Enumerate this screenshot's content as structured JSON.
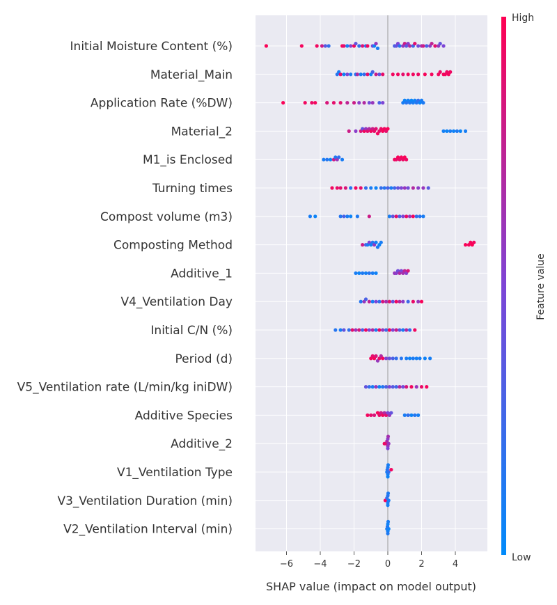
{
  "chart_data": {
    "type": "scatter",
    "variant": "shap-beeswarm-summary",
    "xlabel": "SHAP value (impact on model output)",
    "xlim": [
      -8,
      5.3
    ],
    "xticks": [
      {
        "value": -6,
        "label": "−6"
      },
      {
        "value": -4,
        "label": "−4"
      },
      {
        "value": -2,
        "label": "−2"
      },
      {
        "value": 0,
        "label": "0"
      },
      {
        "value": 2,
        "label": "2"
      },
      {
        "value": 4,
        "label": "4"
      }
    ],
    "grid": true,
    "colorbar": {
      "title": "Feature value",
      "high_label": "High",
      "low_label": "Low",
      "high_color": "#ff0052",
      "low_color": "#008bfb"
    },
    "features": [
      {
        "name": "Initial Moisture Content (%)",
        "shap": [
          -7.2,
          -5.1,
          -4.2,
          -3.9,
          -3.7,
          -3.5,
          -2.7,
          -2.6,
          -2.4,
          -2.2,
          -2.0,
          -1.9,
          -1.7,
          -1.5,
          -1.3,
          -1.2,
          -0.9,
          -0.8,
          -0.7,
          -0.6,
          0.4,
          0.5,
          0.6,
          0.7,
          0.9,
          1.0,
          1.1,
          1.2,
          1.3,
          1.5,
          1.6,
          1.8,
          2.0,
          2.1,
          2.3,
          2.5,
          2.6,
          2.8,
          3.0,
          3.1,
          3.3
        ],
        "value": [
          0.98,
          0.96,
          0.95,
          0.8,
          0.35,
          0.2,
          0.96,
          0.9,
          0.1,
          0.55,
          0.95,
          0.4,
          0.2,
          0.85,
          0.15,
          0.96,
          0.5,
          0.05,
          0.6,
          0.1,
          0.3,
          0.4,
          0.5,
          0.15,
          0.6,
          0.8,
          0.35,
          0.55,
          0.7,
          0.25,
          0.9,
          0.45,
          0.65,
          0.8,
          0.3,
          0.55,
          0.75,
          0.9,
          0.6,
          0.4,
          0.5
        ]
      },
      {
        "name": "Material_Main",
        "shap": [
          -3.0,
          -2.9,
          -2.8,
          -2.6,
          -2.4,
          -2.2,
          -1.9,
          -1.8,
          -1.6,
          -1.4,
          -1.2,
          -1.0,
          -0.9,
          -0.7,
          -0.5,
          -0.3,
          0.3,
          0.6,
          0.9,
          1.2,
          1.5,
          1.8,
          2.2,
          2.6,
          3.0,
          3.1,
          3.3,
          3.4,
          3.5,
          3.6,
          3.7
        ],
        "value": [
          0.15,
          0.1,
          0.9,
          0.05,
          0.5,
          0.1,
          0.15,
          0.7,
          0.1,
          0.2,
          0.9,
          0.05,
          0.3,
          0.8,
          0.4,
          0.92,
          0.95,
          0.95,
          0.9,
          0.96,
          0.95,
          0.93,
          0.97,
          0.96,
          0.95,
          0.92,
          0.97,
          0.95,
          0.93,
          0.96,
          0.94
        ]
      },
      {
        "name": "Application Rate (%DW)",
        "shap": [
          -6.2,
          -4.9,
          -4.5,
          -4.3,
          -3.6,
          -3.2,
          -2.8,
          -2.4,
          -2.0,
          -1.7,
          -1.4,
          -1.1,
          -0.9,
          -0.5,
          -0.3,
          0.9,
          1.0,
          1.1,
          1.2,
          1.3,
          1.4,
          1.5,
          1.6,
          1.7,
          1.8,
          1.9,
          2.0,
          2.1
        ],
        "value": [
          0.98,
          0.95,
          0.92,
          0.96,
          0.85,
          0.9,
          0.88,
          0.75,
          0.8,
          0.55,
          0.7,
          0.45,
          0.6,
          0.3,
          0.5,
          0.1,
          0.05,
          0.15,
          0.08,
          0.12,
          0.03,
          0.1,
          0.06,
          0.14,
          0.2,
          0.04,
          0.09,
          0.12
        ]
      },
      {
        "name": "Material_2",
        "shap": [
          -2.3,
          -1.9,
          -1.6,
          -1.5,
          -1.4,
          -1.3,
          -1.2,
          -1.1,
          -1.0,
          -0.9,
          -0.8,
          -0.7,
          -0.6,
          -0.5,
          -0.4,
          -0.3,
          -0.2,
          -0.1,
          0.0,
          3.3,
          3.5,
          3.7,
          3.9,
          4.1,
          4.3,
          4.6
        ],
        "value": [
          0.8,
          0.55,
          0.85,
          0.4,
          0.95,
          0.6,
          0.9,
          0.7,
          0.95,
          0.8,
          0.92,
          0.88,
          0.96,
          0.9,
          0.93,
          0.97,
          0.95,
          0.9,
          0.98,
          0.08,
          0.05,
          0.1,
          0.06,
          0.12,
          0.04,
          0.09
        ]
      },
      {
        "name": "M1_is Enclosed",
        "shap": [
          -3.8,
          -3.6,
          -3.4,
          -3.2,
          -3.1,
          -3.0,
          -2.9,
          -2.7,
          0.4,
          0.5,
          0.6,
          0.7,
          0.8,
          0.9,
          1.0,
          1.1
        ],
        "value": [
          0.1,
          0.15,
          0.05,
          0.8,
          0.12,
          0.6,
          0.2,
          0.1,
          0.95,
          0.92,
          0.97,
          0.9,
          0.96,
          0.93,
          0.98,
          0.94
        ]
      },
      {
        "name": "Turning times",
        "shap": [
          -3.3,
          -3.0,
          -2.8,
          -2.5,
          -2.2,
          -1.9,
          -1.6,
          -1.3,
          -1.0,
          -0.7,
          -0.4,
          -0.2,
          0.0,
          0.2,
          0.4,
          0.6,
          0.8,
          1.0,
          1.2,
          1.5,
          1.8,
          2.1,
          2.4
        ],
        "value": [
          0.95,
          0.92,
          0.9,
          0.85,
          0.15,
          0.95,
          0.9,
          0.2,
          0.1,
          0.05,
          0.2,
          0.15,
          0.3,
          0.1,
          0.25,
          0.4,
          0.5,
          0.6,
          0.45,
          0.7,
          0.55,
          0.6,
          0.35
        ]
      },
      {
        "name": "Compost volume (m3)",
        "shap": [
          -4.6,
          -4.3,
          -2.8,
          -2.6,
          -2.4,
          -2.2,
          -1.8,
          -1.1,
          0.1,
          0.3,
          0.5,
          0.7,
          0.9,
          1.1,
          1.3,
          1.5,
          1.7,
          1.9,
          2.1
        ],
        "value": [
          0.1,
          0.05,
          0.15,
          0.3,
          0.1,
          0.05,
          0.12,
          0.8,
          0.1,
          0.4,
          0.9,
          0.3,
          0.5,
          0.92,
          0.6,
          0.96,
          0.2,
          0.15,
          0.1
        ]
      },
      {
        "name": "Composting Method",
        "shap": [
          -1.5,
          -1.3,
          -1.2,
          -1.1,
          -1.0,
          -0.9,
          -0.8,
          -0.7,
          -0.6,
          -0.5,
          -0.4,
          4.6,
          4.8,
          4.9,
          5.0,
          5.1
        ],
        "value": [
          0.8,
          0.35,
          0.1,
          0.5,
          0.05,
          0.15,
          0.6,
          0.08,
          0.12,
          0.04,
          0.1,
          0.98,
          0.96,
          0.97,
          0.99,
          0.95
        ]
      },
      {
        "name": "Additive_1",
        "shap": [
          -1.9,
          -1.7,
          -1.5,
          -1.3,
          -1.1,
          -0.9,
          -0.7,
          0.4,
          0.5,
          0.6,
          0.7,
          0.8,
          0.9,
          1.0,
          1.1,
          1.2
        ],
        "value": [
          0.1,
          0.05,
          0.12,
          0.08,
          0.15,
          0.1,
          0.06,
          0.6,
          0.55,
          0.45,
          0.7,
          0.5,
          0.65,
          0.75,
          0.55,
          0.85
        ]
      },
      {
        "name": "V4_Ventilation Day",
        "shap": [
          -1.6,
          -1.4,
          -1.3,
          -1.1,
          -0.9,
          -0.7,
          -0.5,
          -0.3,
          -0.1,
          0.1,
          0.3,
          0.5,
          0.7,
          0.9,
          1.2,
          1.5,
          1.8,
          2.0
        ],
        "value": [
          0.15,
          0.6,
          0.3,
          0.75,
          0.1,
          0.5,
          0.2,
          0.85,
          0.65,
          0.9,
          0.4,
          0.95,
          0.7,
          0.55,
          0.25,
          0.92,
          0.6,
          0.97
        ]
      },
      {
        "name": "Initial C/N (%)",
        "shap": [
          -3.1,
          -2.8,
          -2.6,
          -2.3,
          -2.1,
          -1.9,
          -1.7,
          -1.5,
          -1.3,
          -1.1,
          -0.9,
          -0.7,
          -0.5,
          -0.3,
          -0.1,
          0.1,
          0.3,
          0.5,
          0.7,
          0.9,
          1.1,
          1.3,
          1.6
        ],
        "value": [
          0.15,
          0.1,
          0.4,
          0.2,
          0.9,
          0.6,
          0.85,
          0.3,
          0.95,
          0.5,
          0.7,
          0.1,
          0.92,
          0.6,
          0.25,
          0.96,
          0.5,
          0.8,
          0.35,
          0.1,
          0.7,
          0.2,
          0.95
        ]
      },
      {
        "name": "Period (d)",
        "shap": [
          -1.0,
          -0.9,
          -0.8,
          -0.7,
          -0.6,
          -0.5,
          -0.4,
          -0.3,
          -0.1,
          0.1,
          0.3,
          0.5,
          0.8,
          1.1,
          1.3,
          1.5,
          1.7,
          1.9,
          2.2,
          2.5
        ],
        "value": [
          0.95,
          0.9,
          0.97,
          0.85,
          0.6,
          0.92,
          0.7,
          0.96,
          0.5,
          0.4,
          0.3,
          0.2,
          0.15,
          0.1,
          0.05,
          0.12,
          0.08,
          0.1,
          0.06,
          0.09
        ]
      },
      {
        "name": "V5_Ventilation rate (L/min/kg iniDW)",
        "shap": [
          -1.3,
          -1.1,
          -0.9,
          -0.7,
          -0.5,
          -0.3,
          -0.1,
          0.1,
          0.3,
          0.5,
          0.7,
          0.9,
          1.1,
          1.4,
          1.7,
          2.0,
          2.3
        ],
        "value": [
          0.4,
          0.2,
          0.1,
          0.6,
          0.05,
          0.15,
          0.3,
          0.5,
          0.35,
          0.25,
          0.7,
          0.45,
          0.85,
          0.95,
          0.6,
          0.92,
          0.96
        ]
      },
      {
        "name": "Additive Species",
        "shap": [
          -1.2,
          -1.0,
          -0.8,
          -0.6,
          -0.5,
          -0.4,
          -0.3,
          -0.2,
          -0.1,
          0.0,
          0.1,
          0.2,
          1.0,
          1.2,
          1.4,
          1.6,
          1.8
        ],
        "value": [
          0.95,
          0.9,
          0.85,
          0.97,
          0.92,
          0.8,
          0.96,
          0.7,
          0.9,
          0.5,
          0.6,
          0.4,
          0.1,
          0.2,
          0.05,
          0.15,
          0.08
        ]
      },
      {
        "name": "Additive_2",
        "shap": [
          -0.2,
          -0.1,
          -0.05,
          0.0,
          0.0,
          0.0,
          0.02,
          0.05
        ],
        "value": [
          0.95,
          0.9,
          0.7,
          0.6,
          0.55,
          0.5,
          0.65,
          0.6
        ]
      },
      {
        "name": "V1_Ventilation Type",
        "shap": [
          -0.05,
          -0.03,
          0.0,
          0.0,
          0.0,
          0.02,
          0.05,
          0.2
        ],
        "value": [
          0.1,
          0.15,
          0.08,
          0.12,
          0.05,
          0.1,
          0.2,
          0.95
        ]
      },
      {
        "name": "V3_Ventilation Duration (min)",
        "shap": [
          -0.15,
          -0.05,
          0.0,
          0.0,
          0.0,
          0.02,
          0.05
        ],
        "value": [
          0.95,
          0.2,
          0.1,
          0.15,
          0.08,
          0.12,
          0.1
        ]
      },
      {
        "name": "V2_Ventilation Interval (min)",
        "shap": [
          -0.05,
          -0.02,
          0.0,
          0.0,
          0.0,
          0.02,
          0.05
        ],
        "value": [
          0.1,
          0.15,
          0.08,
          0.05,
          0.12,
          0.1,
          0.06
        ]
      }
    ]
  }
}
